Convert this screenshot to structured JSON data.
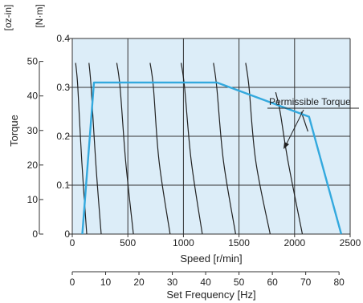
{
  "chart_data": {
    "type": "line",
    "ylabel": "Torque",
    "y_units": [
      "[oz-in]",
      "[N·m]"
    ],
    "xlabel": "Speed [r/min]",
    "x2label": "Set Frequency [Hz]",
    "xlim": [
      0,
      2500
    ],
    "ylim": [
      0,
      0.4
    ],
    "oz_ticks": [
      "0",
      "10",
      "20",
      "30",
      "40",
      "50"
    ],
    "nm_ticks": [
      "0",
      "0.1",
      "0.2",
      "0.3",
      "0.4"
    ],
    "speed_ticks": [
      "0",
      "500",
      "1000",
      "1500",
      "2000",
      "2500"
    ],
    "freq_ticks": [
      "0",
      "10",
      "20",
      "30",
      "40",
      "50",
      "60",
      "70",
      "80"
    ],
    "grid": true,
    "annotation": "Permissible Torque",
    "colors": {
      "plot_background": "#dcedf8",
      "permissible_line": "#33a9de",
      "curve_line": "#222222",
      "grid_line": "#333333"
    },
    "permissible_torque": {
      "x": [
        90,
        195,
        1300,
        2130,
        2420
      ],
      "y": [
        0,
        0.31,
        0.31,
        0.24,
        0
      ]
    },
    "torque_curves": [
      {
        "x": [
          30,
          50,
          85,
          130
        ],
        "y": [
          0.35,
          0.3,
          0.15,
          0
        ]
      },
      {
        "x": [
          150,
          170,
          210,
          260
        ],
        "y": [
          0.35,
          0.3,
          0.15,
          0
        ]
      },
      {
        "x": [
          400,
          430,
          480,
          550
        ],
        "y": [
          0.35,
          0.3,
          0.15,
          0
        ]
      },
      {
        "x": [
          700,
          730,
          780,
          880
        ],
        "y": [
          0.35,
          0.3,
          0.15,
          0
        ]
      },
      {
        "x": [
          980,
          1010,
          1070,
          1170
        ],
        "y": [
          0.35,
          0.3,
          0.15,
          0
        ]
      },
      {
        "x": [
          1270,
          1300,
          1360,
          1470
        ],
        "y": [
          0.35,
          0.3,
          0.15,
          0
        ]
      },
      {
        "x": [
          1560,
          1590,
          1650,
          1780
        ],
        "y": [
          0.35,
          0.3,
          0.15,
          0
        ]
      },
      {
        "x": [
          1830,
          1870,
          1940,
          2070
        ],
        "y": [
          0.29,
          0.25,
          0.15,
          0
        ]
      },
      {
        "x": [
          2060,
          2090,
          2120
        ],
        "y": [
          0.25,
          0.23,
          0.21
        ]
      }
    ]
  }
}
